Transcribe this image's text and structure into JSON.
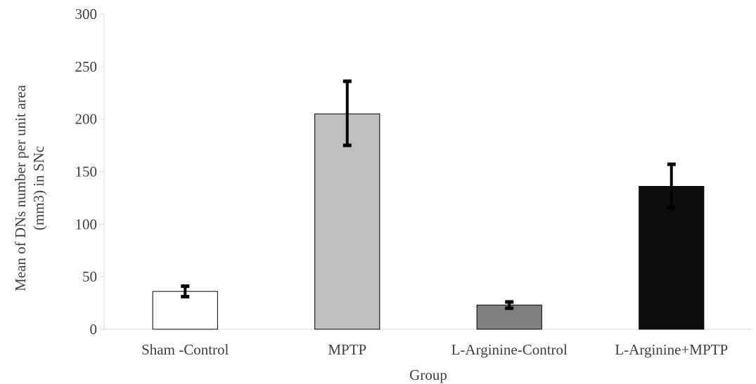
{
  "chart_data": {
    "type": "bar",
    "title": "",
    "xlabel": "Group",
    "ylabel_lines": [
      "Mean of DNs number per unit area",
      "(mm3) in SNc"
    ],
    "ylim": [
      0,
      300
    ],
    "yticks": [
      0,
      50,
      100,
      150,
      200,
      250,
      300
    ],
    "grid": false,
    "legend": "none",
    "categories": [
      "Sham -Control",
      "MPTP",
      "L-Arginine-Control",
      "L-Arginine+MPTP"
    ],
    "values": [
      36,
      205,
      23,
      136
    ],
    "error_low": [
      31,
      175,
      20,
      116
    ],
    "error_high": [
      41,
      236,
      26,
      157
    ],
    "bar_colors": [
      "#ffffff",
      "#bfbfbf",
      "#7f7f7f",
      "#0d0d0d"
    ],
    "error_bar_color": "#000000"
  }
}
